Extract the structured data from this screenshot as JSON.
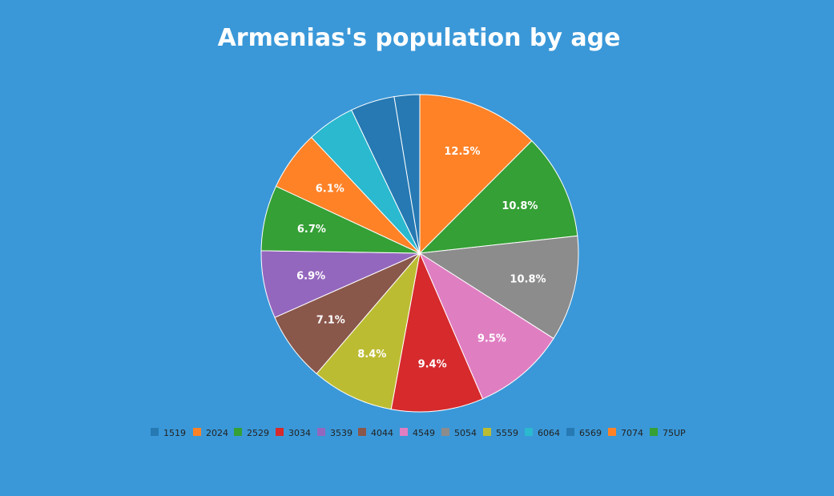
{
  "chart_data": {
    "type": "pie",
    "title": "Armenias's population by age",
    "categories": [
      "1519",
      "2024",
      "2529",
      "3034",
      "3539",
      "4044",
      "4549",
      "5054",
      "5559",
      "6064",
      "6569",
      "7074",
      "75UP"
    ],
    "values": [
      2.6,
      12.5,
      10.8,
      10.8,
      9.5,
      9.4,
      8.4,
      7.1,
      6.9,
      6.7,
      6.1,
      4.9,
      4.5
    ],
    "slice_labels": [
      "",
      "12.5%",
      "10.8%",
      "10.8%",
      "9.5%",
      "9.4%",
      "8.4%",
      "7.1%",
      "6.9%",
      "6.7%",
      "6.1%",
      "",
      ""
    ],
    "slice_colors": [
      "#2679b3",
      "#ff8227",
      "#35a035",
      "#8c8c8c",
      "#e07ec2",
      "#d62a2d",
      "#bcbc32",
      "#8a574b",
      "#9467be",
      "#35a035",
      "#ff8227",
      "#2ab9cf",
      "#2679b3"
    ],
    "legend_colors": [
      "#2679b3",
      "#ff8227",
      "#35a035",
      "#d62a2d",
      "#9467be",
      "#8a574b",
      "#e07ec2",
      "#8c8c8c",
      "#bcbc32",
      "#2ab9cf",
      "#2679b3",
      "#ff8227",
      "#35a035"
    ],
    "legend_position": "bottom"
  }
}
